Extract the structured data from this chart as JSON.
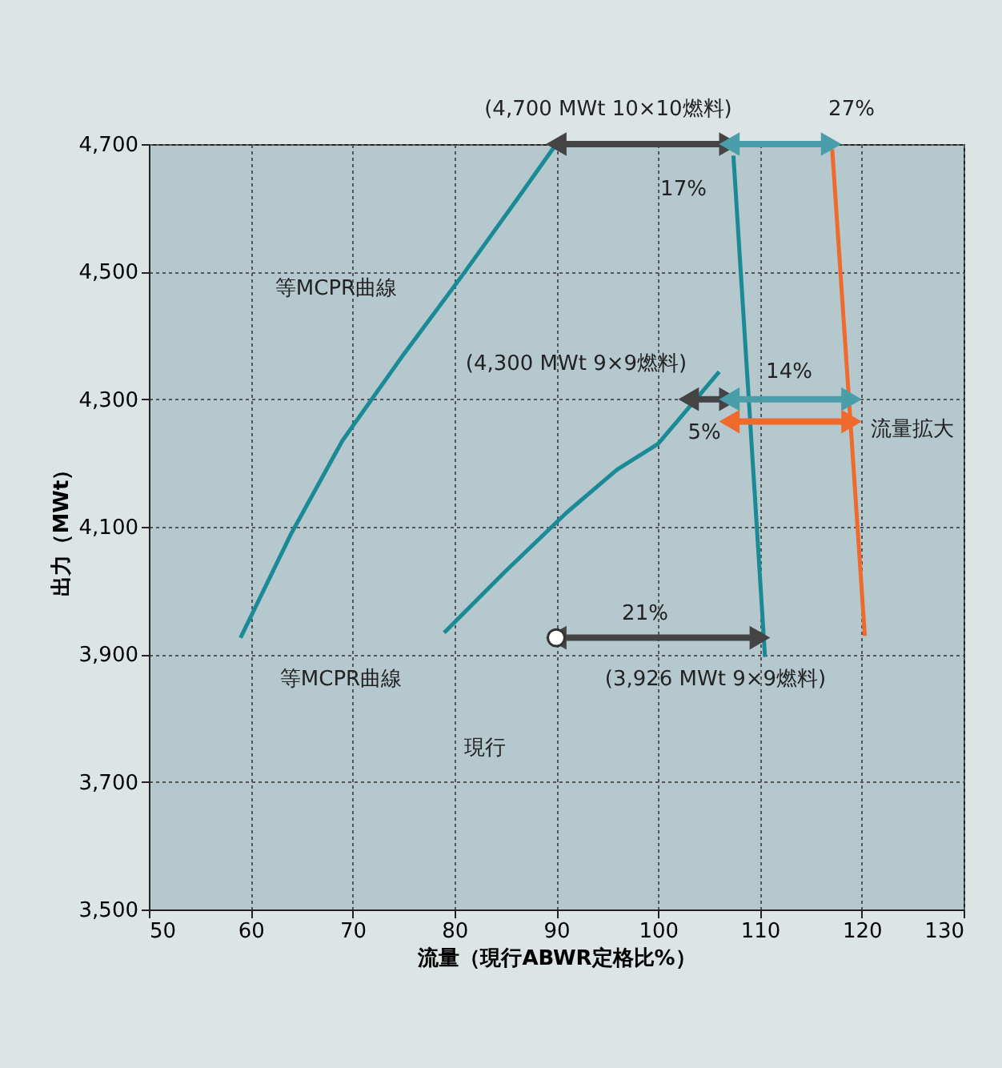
{
  "chart_data": {
    "type": "line",
    "xlabel": "流量（現行ABWR定格比%）",
    "ylabel": "出力（MWt）",
    "xlim": [
      50,
      130
    ],
    "xticks": [
      50,
      60,
      70,
      80,
      90,
      100,
      110,
      120,
      130
    ],
    "ylim": [
      3500,
      4700
    ],
    "yticks": [
      {
        "value": 3500,
        "label": "3,500"
      },
      {
        "value": 3700,
        "label": "3,700"
      },
      {
        "value": 3900,
        "label": "3,900"
      },
      {
        "value": 4100,
        "label": "4,100"
      },
      {
        "value": 4300,
        "label": "4,300"
      },
      {
        "value": 4500,
        "label": "4,500"
      },
      {
        "value": 4700,
        "label": "4,700"
      }
    ],
    "grid": true,
    "series": [
      {
        "type": "line",
        "color": "#1a8a96",
        "x": [
          59,
          64,
          69,
          75,
          81,
          86,
          90
        ],
        "values": [
          3926,
          4090,
          4235,
          4370,
          4499,
          4610,
          4700
        ]
      },
      {
        "type": "line",
        "color": "#1a8a96",
        "x": [
          79,
          85,
          91,
          96,
          100,
          106
        ],
        "values": [
          3934,
          4030,
          4122,
          4190,
          4230,
          4343
        ]
      },
      {
        "type": "line",
        "color": "#1a8a96",
        "x": [
          107.4,
          110.5
        ],
        "values": [
          4682,
          3896
        ]
      },
      {
        "type": "line",
        "color": "#f06a2e",
        "x": [
          117.1,
          120.3
        ],
        "values": [
          4692,
          3929
        ]
      },
      {
        "type": "line",
        "color": "#444444",
        "marker": "triangle",
        "x": [
          90,
          107
        ],
        "values": [
          4700,
          4700
        ]
      },
      {
        "type": "line",
        "color": "#4a9eaa",
        "marker": "triangle",
        "x": [
          107,
          117
        ],
        "values": [
          4700,
          4700
        ]
      },
      {
        "type": "line",
        "color": "#444444",
        "marker": "triangle",
        "x": [
          103,
          107
        ],
        "values": [
          4300,
          4300
        ]
      },
      {
        "type": "line",
        "color": "#4a9eaa",
        "marker": "triangle",
        "x": [
          107,
          119
        ],
        "values": [
          4300,
          4300
        ]
      },
      {
        "type": "line",
        "color": "#f06a2e",
        "marker": "triangle",
        "x": [
          107,
          119
        ],
        "values": [
          4265,
          4265
        ]
      },
      {
        "type": "line",
        "color": "#444444",
        "marker": "triangle",
        "x": [
          90,
          110
        ],
        "values": [
          3926,
          3926
        ]
      },
      {
        "type": "scatter",
        "color": "#ffffff",
        "marker": "circle",
        "x": [
          90
        ],
        "values": [
          3926
        ]
      }
    ],
    "annotations": [
      "(4,700 MWt 10×10燃料)",
      "27%",
      "17%",
      "等MCPR曲線",
      "(4,300 MWt 9×9燃料)",
      "14%",
      "5%",
      "流量拡大",
      "21%",
      "等MCPR曲線",
      "(3,926 MWt 9×9燃料)",
      "現行"
    ]
  }
}
